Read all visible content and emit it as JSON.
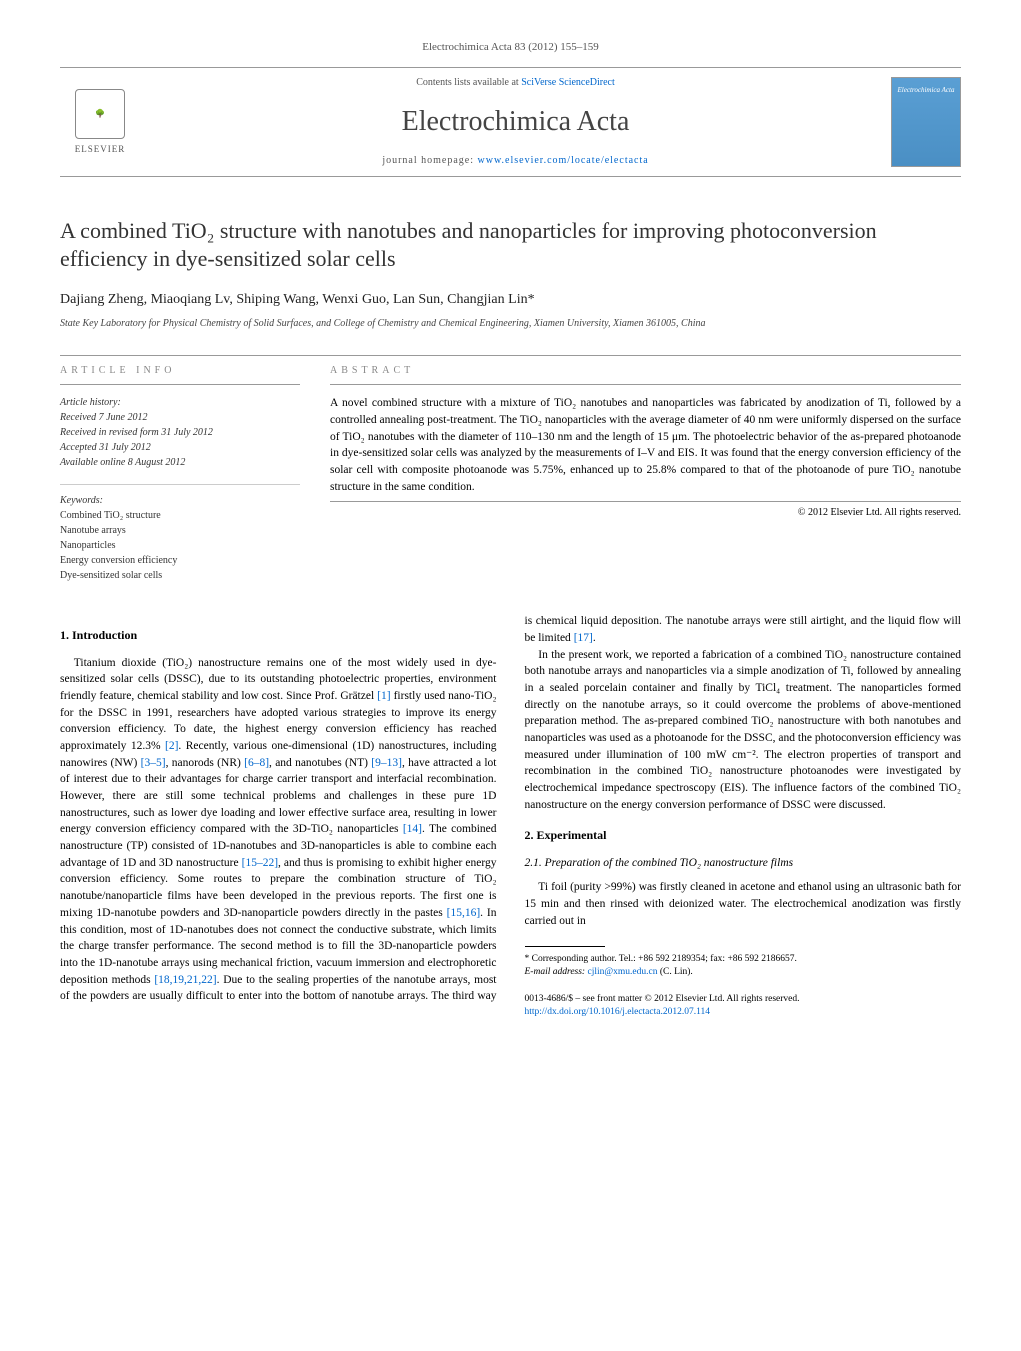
{
  "journal_ref": "Electrochimica Acta 83 (2012) 155–159",
  "header": {
    "publisher_name": "ELSEVIER",
    "contents_prefix": "Contents lists available at ",
    "contents_link": "SciVerse ScienceDirect",
    "journal_name": "Electrochimica Acta",
    "homepage_prefix": "journal homepage: ",
    "homepage_link": "www.elsevier.com/locate/electacta",
    "cover_text": "Electrochimica Acta"
  },
  "title": "A combined TiO₂ structure with nanotubes and nanoparticles for improving photoconversion efficiency in dye-sensitized solar cells",
  "authors": "Dajiang Zheng, Miaoqiang Lv, Shiping Wang, Wenxi Guo, Lan Sun, Changjian Lin*",
  "affiliation": "State Key Laboratory for Physical Chemistry of Solid Surfaces, and College of Chemistry and Chemical Engineering, Xiamen University, Xiamen 361005, China",
  "article_info": {
    "label": "ARTICLE INFO",
    "history_head": "Article history:",
    "received": "Received 7 June 2012",
    "revised": "Received in revised form 31 July 2012",
    "accepted": "Accepted 31 July 2012",
    "online": "Available online 8 August 2012",
    "keywords_head": "Keywords:",
    "kw1": "Combined TiO₂ structure",
    "kw2": "Nanotube arrays",
    "kw3": "Nanoparticles",
    "kw4": "Energy conversion efficiency",
    "kw5": "Dye-sensitized solar cells"
  },
  "abstract": {
    "label": "ABSTRACT",
    "text": "A novel combined structure with a mixture of TiO₂ nanotubes and nanoparticles was fabricated by anodization of Ti, followed by a controlled annealing post-treatment. The TiO₂ nanoparticles with the average diameter of 40 nm were uniformly dispersed on the surface of TiO₂ nanotubes with the diameter of 110–130 nm and the length of 15 μm. The photoelectric behavior of the as-prepared photoanode in dye-sensitized solar cells was analyzed by the measurements of I–V and EIS. It was found that the energy conversion efficiency of the solar cell with composite photoanode was 5.75%, enhanced up to 25.8% compared to that of the photoanode of pure TiO₂ nanotube structure in the same condition.",
    "copyright": "© 2012 Elsevier Ltd. All rights reserved."
  },
  "sections": {
    "intro_head": "1. Introduction",
    "intro_p1a": "Titanium dioxide (TiO₂) nanostructure remains one of the most widely used in dye-sensitized solar cells (DSSC), due to its outstanding photoelectric properties, environment friendly feature, chemical stability and low cost. Since Prof. Grätzel ",
    "intro_ref1": "[1]",
    "intro_p1b": " firstly used nano-TiO₂ for the DSSC in 1991, researchers have adopted various strategies to improve its energy conversion efficiency. To date, the highest energy conversion efficiency has reached approximately 12.3% ",
    "intro_ref2": "[2]",
    "intro_p1c": ". Recently, various one-dimensional (1D) nanostructures, including nanowires (NW) ",
    "intro_ref3": "[3–5]",
    "intro_p1d": ", nanorods (NR) ",
    "intro_ref4": "[6–8]",
    "intro_p1e": ", and nanotubes (NT) ",
    "intro_ref5": "[9–13]",
    "intro_p1f": ", have attracted a lot of interest due to their advantages for charge carrier transport and interfacial recombination. However, there are still some technical problems and challenges in these pure 1D nanostructures, such as lower dye loading and lower effective surface area, resulting in lower energy conversion efficiency compared with the 3D-TiO₂ nanoparticles ",
    "intro_ref6": "[14]",
    "intro_p1g": ". The combined nanostructure (TP) consisted of 1D-nanotubes and 3D-nanoparticles is able to combine each advantage of 1D and 3D nanostructure ",
    "intro_ref7": "[15–22]",
    "intro_p1h": ", and thus is promising to exhibit higher energy conversion efficiency. Some routes to prepare the combination structure of TiO₂ nanotube/nanoparticle films have been developed in the previous reports. The first one is mixing 1D-nanotube powders and 3D-nanoparticle powders directly in the pastes ",
    "intro_ref8": "[15,16]",
    "intro_p1i": ". In this condition, most of 1D-nanotubes does not connect the conductive substrate, which limits the charge ",
    "intro_p2a": "transfer performance. The second method is to fill the 3D-nanoparticle powders into the 1D-nanotube arrays using mechanical friction, vacuum immersion and electrophoretic deposition methods ",
    "intro_ref9": "[18,19,21,22]",
    "intro_p2b": ". Due to the sealing properties of the nanotube arrays, most of the powders are usually difficult to enter into the bottom of nanotube arrays. The third way is chemical liquid deposition. The nanotube arrays were still airtight, and the liquid flow will be limited ",
    "intro_ref10": "[17]",
    "intro_p2c": ".",
    "intro_p3": "In the present work, we reported a fabrication of a combined TiO₂ nanostructure contained both nanotube arrays and nanoparticles via a simple anodization of Ti, followed by annealing in a sealed porcelain container and finally by TiCl₄ treatment. The nanoparticles formed directly on the nanotube arrays, so it could overcome the problems of above-mentioned preparation method. The as-prepared combined TiO₂ nanostructure with both nanotubes and nanoparticles was used as a photoanode for the DSSC, and the photoconversion efficiency was measured under illumination of 100 mW cm⁻². The electron properties of transport and recombination in the combined TiO₂ nanostructure photoanodes were investigated by electrochemical impedance spectroscopy (EIS). The influence factors of the combined TiO₂ nanostructure on the energy conversion performance of DSSC were discussed.",
    "exp_head": "2. Experimental",
    "exp_sub1": "2.1. Preparation of the combined TiO₂ nanostructure films",
    "exp_p1": "Ti foil (purity >99%) was firstly cleaned in acetone and ethanol using an ultrasonic bath for 15 min and then rinsed with deionized water. The electrochemical anodization was firstly carried out in"
  },
  "footer": {
    "corr_label": "* Corresponding author. Tel.: +86 592 2189354; fax: +86 592 2186657.",
    "email_label": "E-mail address: ",
    "email": "cjlin@xmu.edu.cn",
    "email_name": " (C. Lin).",
    "issn_line": "0013-4686/$ – see front matter © 2012 Elsevier Ltd. All rights reserved.",
    "doi": "http://dx.doi.org/10.1016/j.electacta.2012.07.114"
  },
  "colors": {
    "link": "#0066cc",
    "text": "#000000",
    "muted": "#555555",
    "rule": "#999999"
  }
}
